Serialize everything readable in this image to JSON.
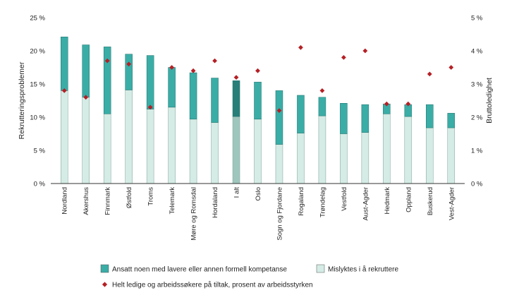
{
  "chart_data": {
    "type": "bar",
    "stacked": true,
    "categories": [
      "Nordland",
      "Akershus",
      "Finnmark",
      "Østfold",
      "Troms",
      "Telemark",
      "Møre og Romsdal",
      "Hordaland",
      "I alt",
      "Oslo",
      "Sogn og Fjordane",
      "Rogaland",
      "Trøndelag",
      "Vestfold",
      "Aust-Agder",
      "Hedmark",
      "Oppland",
      "Buskerud",
      "Vest-Agder"
    ],
    "highlight_category": "I alt",
    "series": [
      {
        "name": "Mislyktes i å rekruttere",
        "axis": "left",
        "color": "#d4ece5",
        "highlight_color": "#9fc6bd",
        "values": [
          14.0,
          13.0,
          10.5,
          14.1,
          11.2,
          11.5,
          9.7,
          9.2,
          10.1,
          9.7,
          5.9,
          7.6,
          10.2,
          7.5,
          7.7,
          10.5,
          10.1,
          8.4,
          8.4
        ]
      },
      {
        "name": "Ansatt noen med lavere eller annen formell kompetanse",
        "axis": "left",
        "color": "#3aada6",
        "highlight_color": "#287f79",
        "values": [
          8.1,
          7.9,
          10.1,
          5.4,
          8.1,
          6.0,
          7.0,
          6.7,
          5.4,
          5.6,
          8.1,
          5.7,
          2.8,
          4.6,
          4.2,
          1.5,
          1.8,
          3.5,
          2.2
        ]
      },
      {
        "name": "Helt ledige og arbeidssøkere på tiltak, prosent av arbeidsstyrken",
        "axis": "right",
        "type": "scatter",
        "marker": "diamond",
        "color": "#b52025",
        "values": [
          2.8,
          2.6,
          3.7,
          3.6,
          2.3,
          3.5,
          3.4,
          3.7,
          3.2,
          3.4,
          2.2,
          4.1,
          2.8,
          3.8,
          4.0,
          2.4,
          2.4,
          3.3,
          3.5
        ]
      }
    ],
    "y_left": {
      "label": "Rekrutteringsproblemer",
      "min": 0,
      "max": 25,
      "ticks": [
        "0 %",
        "5 %",
        "10 %",
        "15 %",
        "20 %",
        "25 %"
      ]
    },
    "y_right": {
      "label": "Bruttoledighet",
      "min": 0,
      "max": 5,
      "ticks": [
        "0 %",
        "1 %",
        "2 %",
        "3 %",
        "4 %",
        "5 %"
      ]
    },
    "grid": false,
    "legend_position": "bottom"
  }
}
